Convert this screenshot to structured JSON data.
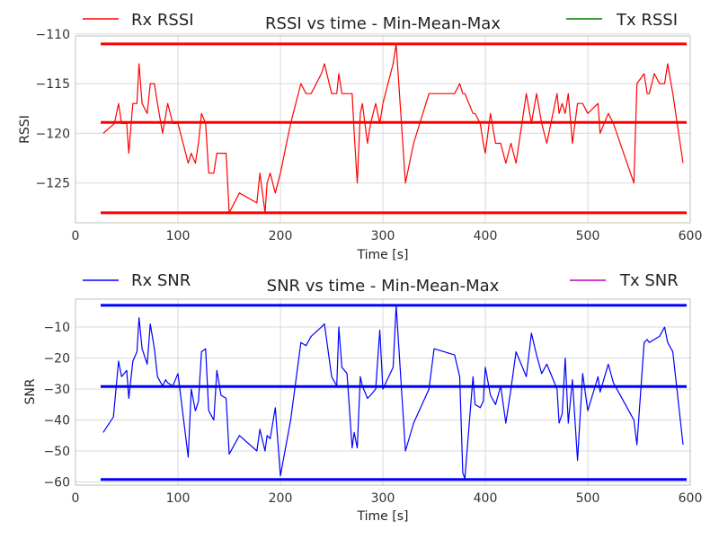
{
  "chart_data": [
    {
      "type": "line",
      "title": "RSSI vs time - Min-Mean-Max",
      "xlabel": "Time [s]",
      "ylabel": "RSSI",
      "xlim": [
        0,
        600
      ],
      "ylim": [
        -129,
        -110.2
      ],
      "xticks": [
        0,
        100,
        200,
        300,
        400,
        500,
        600
      ],
      "yticks": [
        -110,
        -115,
        -120,
        -125
      ],
      "grid": true,
      "legend": {
        "left": "Rx RSSI",
        "right": "Tx RSSI"
      },
      "colors": {
        "rx": "#ff0000",
        "tx": "#008000"
      },
      "series": [
        {
          "name": "Rx RSSI",
          "color": "#ff0000",
          "x": [
            27,
            38,
            42,
            45,
            50,
            52,
            56,
            60,
            62,
            65,
            70,
            73,
            77,
            80,
            85,
            90,
            95,
            100,
            110,
            113,
            117,
            120,
            123,
            127,
            130,
            135,
            138,
            142,
            147,
            150,
            160,
            177,
            180,
            185,
            187,
            190,
            195,
            200,
            210,
            220,
            225,
            230,
            240,
            243,
            250,
            255,
            257,
            260,
            265,
            270,
            272,
            275,
            278,
            280,
            285,
            288,
            293,
            297,
            300,
            310,
            313,
            322,
            330,
            345,
            350,
            370,
            375,
            378,
            380,
            388,
            390,
            395,
            398,
            400,
            405,
            410,
            415,
            420,
            425,
            430,
            440,
            445,
            450,
            455,
            460,
            470,
            472,
            475,
            478,
            481,
            485,
            490,
            495,
            500,
            510,
            512,
            520,
            525,
            545,
            548,
            555,
            558,
            560,
            565,
            570,
            575,
            578,
            583,
            593
          ],
          "y": [
            -120,
            -119,
            -117,
            -119,
            -119,
            -122,
            -117,
            -117,
            -113,
            -117,
            -118,
            -115,
            -115,
            -117,
            -120,
            -117,
            -119,
            -119,
            -123,
            -122,
            -123,
            -121,
            -118,
            -119,
            -124,
            -124,
            -122,
            -122,
            -122,
            -128,
            -126,
            -127,
            -124,
            -128,
            -125,
            -124,
            -126,
            -124,
            -119,
            -115,
            -116,
            -116,
            -114,
            -113,
            -116,
            -116,
            -114,
            -116,
            -116,
            -116,
            -120,
            -125,
            -118,
            -117,
            -121,
            -119,
            -117,
            -119,
            -117,
            -113,
            -111,
            -125,
            -121,
            -116,
            -116,
            -116,
            -115,
            -116,
            -116,
            -118,
            -118,
            -119,
            -121,
            -122,
            -118,
            -121,
            -121,
            -123,
            -121,
            -123,
            -116,
            -119,
            -116,
            -119,
            -121,
            -116,
            -118,
            -117,
            -118,
            -116,
            -121,
            -117,
            -117,
            -118,
            -117,
            -120,
            -118,
            -119,
            -125,
            -115,
            -114,
            -116,
            -116,
            -114,
            -115,
            -115,
            -113,
            -116,
            -123
          ]
        },
        {
          "name": "Tx RSSI",
          "color": "#008000",
          "x": [],
          "y": []
        }
      ],
      "reference_lines": [
        {
          "label": "Max",
          "y": -111,
          "color": "#ff0000"
        },
        {
          "label": "Mean",
          "y": -118.9,
          "color": "#ff0000"
        },
        {
          "label": "Min",
          "y": -128,
          "color": "#ff0000"
        }
      ]
    },
    {
      "type": "line",
      "title": "SNR vs time - Min-Mean-Max",
      "xlabel": "Time [s]",
      "ylabel": "SNR",
      "xlim": [
        0,
        600
      ],
      "ylim": [
        -61,
        -1
      ],
      "xticks": [
        0,
        100,
        200,
        300,
        400,
        500,
        600
      ],
      "yticks": [
        -10,
        -20,
        -30,
        -40,
        -50,
        -60
      ],
      "grid": true,
      "legend": {
        "left": "Rx SNR",
        "right": "Tx SNR"
      },
      "colors": {
        "rx": "#0000ff",
        "tx": "#bf00bf"
      },
      "series": [
        {
          "name": "Rx SNR",
          "color": "#0000ff",
          "x": [
            27,
            37,
            42,
            45,
            50,
            52,
            56,
            60,
            62,
            65,
            70,
            73,
            77,
            80,
            85,
            88,
            90,
            95,
            100,
            110,
            113,
            117,
            120,
            123,
            127,
            130,
            135,
            138,
            142,
            147,
            150,
            160,
            177,
            180,
            185,
            187,
            190,
            195,
            200,
            210,
            220,
            225,
            230,
            240,
            243,
            250,
            255,
            257,
            260,
            265,
            270,
            272,
            275,
            278,
            280,
            285,
            288,
            293,
            297,
            300,
            310,
            313,
            322,
            330,
            345,
            350,
            370,
            375,
            378,
            380,
            388,
            390,
            395,
            398,
            400,
            405,
            410,
            415,
            420,
            425,
            430,
            440,
            445,
            450,
            455,
            460,
            470,
            472,
            475,
            478,
            481,
            485,
            490,
            495,
            500,
            510,
            512,
            520,
            525,
            545,
            548,
            555,
            558,
            560,
            565,
            570,
            575,
            578,
            583,
            593
          ],
          "y": [
            -44,
            -39,
            -21,
            -26,
            -24,
            -33,
            -21,
            -18,
            -7,
            -17,
            -22,
            -9,
            -17,
            -26,
            -29,
            -27,
            -28,
            -29,
            -25,
            -52,
            -30,
            -37,
            -34,
            -18,
            -17,
            -37,
            -40,
            -24,
            -32,
            -33,
            -51,
            -45,
            -50,
            -43,
            -50,
            -45,
            -46,
            -36,
            -58,
            -40,
            -15,
            -16,
            -13,
            -10,
            -9,
            -26,
            -29,
            -10,
            -23,
            -25,
            -49,
            -44,
            -49,
            -26,
            -29,
            -33,
            -32,
            -30,
            -11,
            -30,
            -23,
            -3,
            -50,
            -41,
            -30,
            -17,
            -19,
            -26,
            -57,
            -59,
            -26,
            -35,
            -36,
            -34,
            -23,
            -32,
            -35,
            -29,
            -41,
            -30,
            -18,
            -26,
            -12,
            -19,
            -25,
            -22,
            -30,
            -41,
            -38,
            -20,
            -41,
            -27,
            -53,
            -25,
            -37,
            -26,
            -31,
            -22,
            -28,
            -40,
            -48,
            -15,
            -14,
            -15,
            -14,
            -13,
            -10,
            -15,
            -18,
            -48
          ]
        },
        {
          "name": "Tx SNR",
          "color": "#bf00bf",
          "x": [],
          "y": []
        }
      ],
      "reference_lines": [
        {
          "label": "Max",
          "y": -3,
          "color": "#0000ff"
        },
        {
          "label": "Mean",
          "y": -29.2,
          "color": "#0000ff"
        },
        {
          "label": "Min",
          "y": -59.2,
          "color": "#0000ff"
        }
      ]
    }
  ]
}
